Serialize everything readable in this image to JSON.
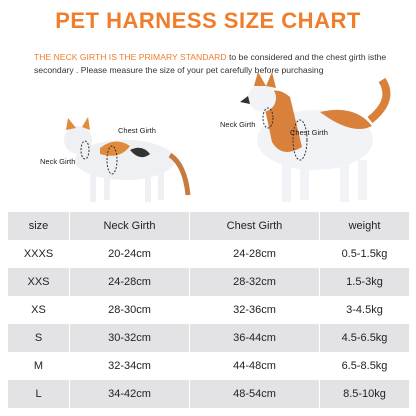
{
  "header": {
    "title": "PET HARNESS SIZE CHART",
    "intro_highlight": "THE NECK GIRTH IS THE PRIMARY STANDARD",
    "intro_rest": "to be considered and the chest girth isthe secondary . Please measure the size of your pet carefully before purchasing"
  },
  "cat": {
    "neck_label": "Neck Girth",
    "chest_label": "Chest Girth"
  },
  "dog": {
    "neck_label": "Neck Girth",
    "chest_label": "Chest Girth"
  },
  "table": {
    "header": [
      "size",
      "Neck Girth",
      "Chest Girth",
      "weight"
    ],
    "rows": [
      [
        "XXXS",
        "20-24cm",
        "24-28cm",
        "0.5-1.5kg"
      ],
      [
        "XXS",
        "24-28cm",
        "28-32cm",
        "1.5-3kg"
      ],
      [
        "XS",
        "28-30cm",
        "32-36cm",
        "3-4.5kg"
      ],
      [
        "S",
        "30-32cm",
        "36-44cm",
        "4.5-6.5kg"
      ],
      [
        "M",
        "32-34cm",
        "44-48cm",
        "6.5-8.5kg"
      ],
      [
        "L",
        "34-42cm",
        "48-54cm",
        "8.5-10kg"
      ]
    ]
  }
}
